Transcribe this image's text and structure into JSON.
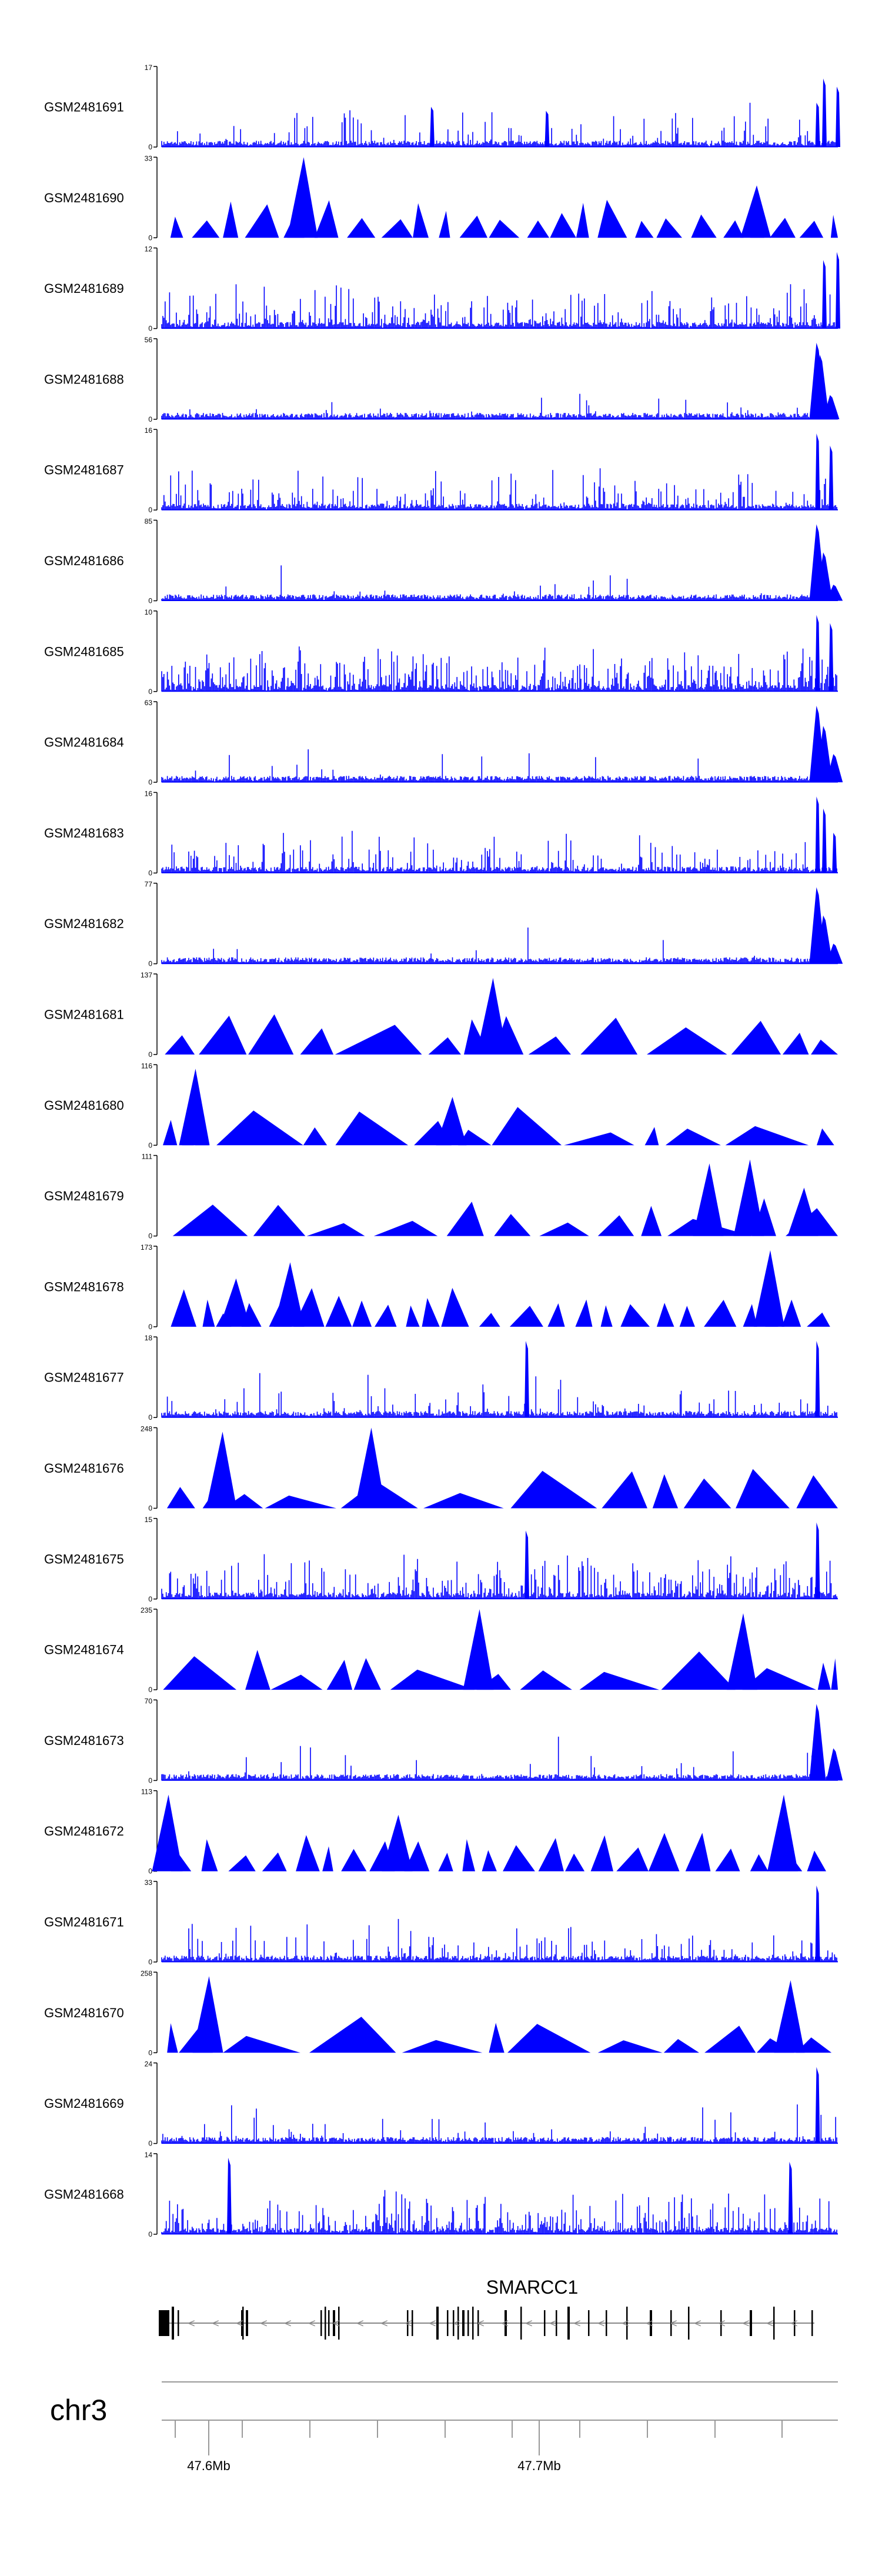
{
  "tracks": [
    {
      "label": "GSM2481691",
      "ymax": "17",
      "ymin": "0",
      "style": "noise",
      "seed": 11,
      "density": 0.18,
      "peaks": [
        [
          0.4,
          0.5
        ],
        [
          0.57,
          0.45
        ],
        [
          0.97,
          0.55
        ],
        [
          0.98,
          0.85
        ],
        [
          1.0,
          0.75
        ]
      ]
    },
    {
      "label": "GSM2481690",
      "ymax": "33",
      "ymin": "0",
      "style": "tri",
      "seed": 12,
      "density": 0.35,
      "peaks": [
        [
          0.21,
          1.0
        ],
        [
          0.88,
          0.65
        ]
      ]
    },
    {
      "label": "GSM2481689",
      "ymax": "12",
      "ymin": "0",
      "style": "noise",
      "seed": 13,
      "density": 0.45,
      "peaks": [
        [
          0.98,
          0.85
        ],
        [
          1.0,
          0.95
        ]
      ]
    },
    {
      "label": "GSM2481688",
      "ymax": "56",
      "ymin": "0",
      "style": "peak",
      "seed": 14,
      "density": 0.05,
      "peaks": [
        [
          0.97,
          0.95
        ],
        [
          0.975,
          0.8
        ],
        [
          0.99,
          0.3
        ]
      ]
    },
    {
      "label": "GSM2481687",
      "ymax": "16",
      "ymin": "0",
      "style": "noise",
      "seed": 15,
      "density": 0.3,
      "peaks": [
        [
          0.97,
          0.95
        ],
        [
          0.99,
          0.8
        ]
      ]
    },
    {
      "label": "GSM2481686",
      "ymax": "85",
      "ymin": "0",
      "style": "peak",
      "seed": 16,
      "density": 0.04,
      "peaks": [
        [
          0.97,
          0.95
        ],
        [
          0.98,
          0.6
        ],
        [
          0.995,
          0.2
        ]
      ]
    },
    {
      "label": "GSM2481685",
      "ymax": "10",
      "ymin": "0",
      "style": "noise",
      "seed": 17,
      "density": 0.7,
      "peaks": [
        [
          0.97,
          0.95
        ],
        [
          0.99,
          0.85
        ]
      ]
    },
    {
      "label": "GSM2481684",
      "ymax": "63",
      "ymin": "0",
      "style": "peak",
      "seed": 18,
      "density": 0.04,
      "peaks": [
        [
          0.97,
          0.95
        ],
        [
          0.98,
          0.7
        ],
        [
          0.995,
          0.35
        ]
      ]
    },
    {
      "label": "GSM2481683",
      "ymax": "16",
      "ymin": "0",
      "style": "noise",
      "seed": 19,
      "density": 0.25,
      "peaks": [
        [
          0.97,
          0.95
        ],
        [
          0.98,
          0.8
        ],
        [
          0.995,
          0.5
        ]
      ]
    },
    {
      "label": "GSM2481682",
      "ymax": "77",
      "ymin": "0",
      "style": "peak",
      "seed": 20,
      "density": 0.03,
      "peaks": [
        [
          0.97,
          0.95
        ],
        [
          0.98,
          0.6
        ],
        [
          0.995,
          0.25
        ]
      ]
    },
    {
      "label": "GSM2481681",
      "ymax": "137",
      "ymin": "0",
      "style": "tri",
      "seed": 21,
      "density": 0.08,
      "peaks": [
        [
          0.49,
          0.95
        ]
      ]
    },
    {
      "label": "GSM2481680",
      "ymax": "116",
      "ymin": "0",
      "style": "tri",
      "seed": 22,
      "density": 0.12,
      "peaks": [
        [
          0.05,
          0.95
        ],
        [
          0.43,
          0.6
        ]
      ]
    },
    {
      "label": "GSM2481679",
      "ymax": "111",
      "ymin": "0",
      "style": "tri",
      "seed": 23,
      "density": 0.14,
      "peaks": [
        [
          0.81,
          0.9
        ],
        [
          0.87,
          0.95
        ],
        [
          0.95,
          0.6
        ]
      ]
    },
    {
      "label": "GSM2481678",
      "ymax": "173",
      "ymin": "0",
      "style": "tri",
      "seed": 24,
      "density": 0.2,
      "peaks": [
        [
          0.11,
          0.6
        ],
        [
          0.19,
          0.8
        ],
        [
          0.9,
          0.95
        ]
      ]
    },
    {
      "label": "GSM2481677",
      "ymax": "18",
      "ymin": "0",
      "style": "noise",
      "seed": 25,
      "density": 0.12,
      "peaks": [
        [
          0.54,
          0.95
        ],
        [
          0.97,
          0.95
        ]
      ]
    },
    {
      "label": "GSM2481676",
      "ymax": "248",
      "ymin": "0",
      "style": "tri",
      "seed": 26,
      "density": 0.06,
      "peaks": [
        [
          0.09,
          0.95
        ],
        [
          0.31,
          1.0
        ]
      ]
    },
    {
      "label": "GSM2481675",
      "ymax": "15",
      "ymin": "0",
      "style": "noise",
      "seed": 27,
      "density": 0.5,
      "peaks": [
        [
          0.54,
          0.85
        ],
        [
          0.97,
          0.95
        ]
      ]
    },
    {
      "label": "GSM2481674",
      "ymax": "235",
      "ymin": "0",
      "style": "tri",
      "seed": 28,
      "density": 0.06,
      "peaks": [
        [
          0.47,
          1.0
        ],
        [
          0.86,
          0.95
        ]
      ]
    },
    {
      "label": "GSM2481673",
      "ymax": "70",
      "ymin": "0",
      "style": "peak",
      "seed": 29,
      "density": 0.06,
      "peaks": [
        [
          0.97,
          0.95
        ],
        [
          0.995,
          0.4
        ]
      ]
    },
    {
      "label": "GSM2481672",
      "ymax": "113",
      "ymin": "0",
      "style": "tri",
      "seed": 30,
      "density": 0.16,
      "peaks": [
        [
          0.01,
          0.95
        ],
        [
          0.35,
          0.7
        ],
        [
          0.92,
          0.95
        ]
      ]
    },
    {
      "label": "GSM2481671",
      "ymax": "33",
      "ymin": "0",
      "style": "noise",
      "seed": 31,
      "density": 0.18,
      "peaks": [
        [
          0.97,
          0.95
        ]
      ]
    },
    {
      "label": "GSM2481670",
      "ymax": "258",
      "ymin": "0",
      "style": "tri",
      "seed": 32,
      "density": 0.07,
      "peaks": [
        [
          0.07,
          0.95
        ],
        [
          0.93,
          0.9
        ]
      ]
    },
    {
      "label": "GSM2481669",
      "ymax": "24",
      "ymin": "0",
      "style": "noise",
      "seed": 33,
      "density": 0.08,
      "peaks": [
        [
          0.97,
          0.95
        ]
      ]
    },
    {
      "label": "GSM2481668",
      "ymax": "14",
      "ymin": "0",
      "style": "noise",
      "seed": 34,
      "density": 0.55,
      "peaks": [
        [
          0.1,
          0.95
        ],
        [
          0.93,
          0.9
        ]
      ]
    }
  ],
  "gene": {
    "name": "SMARCC1",
    "strand_arrow": "<"
  },
  "chromosome": {
    "name": "chr3",
    "tick_labels": [
      "47.6Mb",
      "47.7Mb"
    ]
  },
  "colors": {
    "signal": "#0000ff",
    "axis": "#000000",
    "gene": "#000000",
    "intron": "#888888",
    "ideogram": "#999999"
  }
}
